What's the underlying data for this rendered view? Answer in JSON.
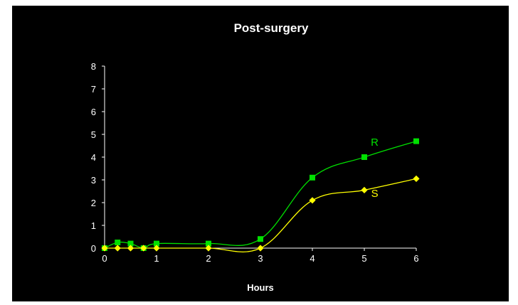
{
  "chart_data": {
    "type": "line",
    "title": "Post-surgery",
    "xlabel": "Hours",
    "ylabel": "",
    "xlim": [
      0,
      6
    ],
    "ylim": [
      0,
      8
    ],
    "x_ticks": [
      "0",
      "1",
      "2",
      "3",
      "4",
      "5",
      "6"
    ],
    "y_ticks": [
      "0",
      "1",
      "2",
      "3",
      "4",
      "5",
      "6",
      "7",
      "8"
    ],
    "grid": false,
    "legend": "none",
    "background": "#000000",
    "axis_color": "#ffffff",
    "series": [
      {
        "name": "R",
        "color": "#00e000",
        "marker": "square",
        "x": [
          0,
          0.25,
          0.5,
          0.75,
          1,
          2,
          3,
          4,
          5,
          6
        ],
        "y": [
          0.0,
          0.25,
          0.2,
          0.0,
          0.2,
          0.2,
          0.4,
          3.1,
          4.0,
          4.7
        ]
      },
      {
        "name": "S",
        "color": "#ffff00",
        "marker": "diamond",
        "x": [
          0,
          0.25,
          0.5,
          0.75,
          1,
          2,
          3,
          4,
          5,
          6
        ],
        "y": [
          0.0,
          0.0,
          0.0,
          0.0,
          0.0,
          0.0,
          0.0,
          2.1,
          2.55,
          3.05
        ]
      }
    ]
  }
}
